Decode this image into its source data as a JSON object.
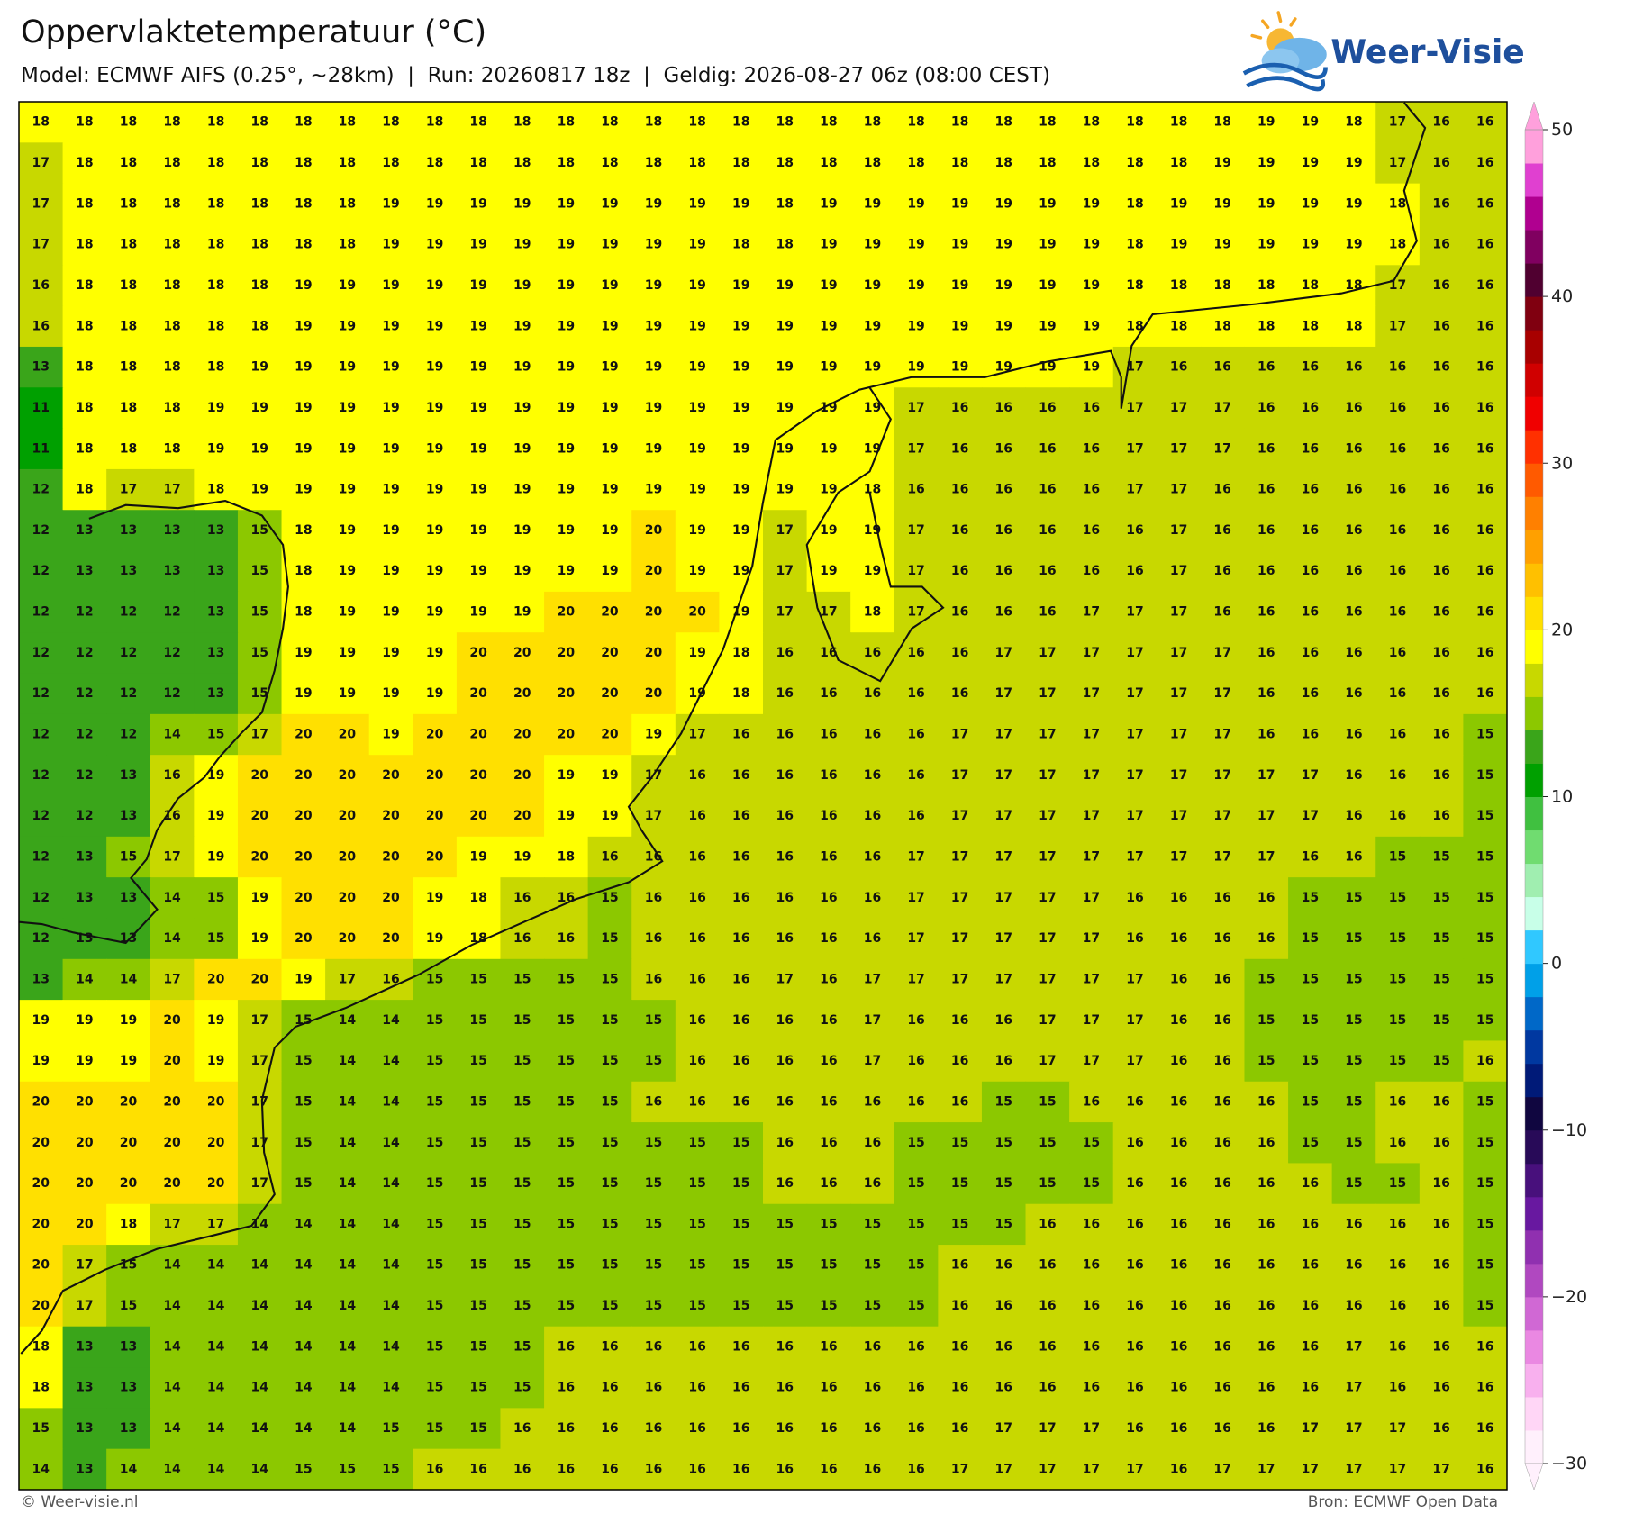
{
  "header": {
    "title": "Oppervlaktetemperatuur (°C)",
    "subtitle": "Model: ECMWF AIFS (0.25°, ~28km)  |  Run: 20260817 18z  |  Geldig: 2026-08-27 06z (08:00 CEST)"
  },
  "logo": "Weer-Visie",
  "map": {
    "values": [
      [
        18,
        18,
        18,
        18,
        18,
        18,
        18,
        18,
        18,
        18,
        18,
        18,
        18,
        18,
        18,
        18,
        18,
        18,
        18,
        18,
        18,
        18,
        18,
        18,
        18,
        18,
        18,
        18,
        19,
        19,
        18,
        17,
        16,
        16
      ],
      [
        17,
        18,
        18,
        18,
        18,
        18,
        18,
        18,
        18,
        18,
        18,
        18,
        18,
        18,
        18,
        18,
        18,
        18,
        18,
        18,
        18,
        18,
        18,
        18,
        18,
        18,
        18,
        19,
        19,
        19,
        19,
        17,
        16,
        16
      ],
      [
        17,
        18,
        18,
        18,
        18,
        18,
        18,
        18,
        19,
        19,
        19,
        19,
        19,
        19,
        19,
        19,
        19,
        18,
        19,
        19,
        19,
        19,
        19,
        19,
        19,
        18,
        19,
        19,
        19,
        19,
        19,
        18,
        16,
        16
      ],
      [
        17,
        18,
        18,
        18,
        18,
        18,
        18,
        18,
        19,
        19,
        19,
        19,
        19,
        19,
        19,
        19,
        18,
        18,
        19,
        19,
        19,
        19,
        19,
        19,
        19,
        18,
        19,
        19,
        19,
        19,
        19,
        18,
        16,
        16
      ],
      [
        16,
        18,
        18,
        18,
        18,
        18,
        19,
        19,
        19,
        19,
        19,
        19,
        19,
        19,
        19,
        19,
        19,
        19,
        19,
        19,
        19,
        19,
        19,
        19,
        19,
        18,
        18,
        18,
        18,
        18,
        18,
        17,
        16,
        16
      ],
      [
        16,
        18,
        18,
        18,
        18,
        18,
        19,
        19,
        19,
        19,
        19,
        19,
        19,
        19,
        19,
        19,
        19,
        19,
        19,
        19,
        19,
        19,
        19,
        19,
        19,
        18,
        18,
        18,
        18,
        18,
        18,
        17,
        16,
        16
      ],
      [
        13,
        18,
        18,
        18,
        18,
        19,
        19,
        19,
        19,
        19,
        19,
        19,
        19,
        19,
        19,
        19,
        19,
        19,
        19,
        19,
        19,
        19,
        19,
        19,
        19,
        17,
        16,
        16,
        16,
        16,
        16,
        16,
        16,
        16
      ],
      [
        11,
        18,
        18,
        18,
        19,
        19,
        19,
        19,
        19,
        19,
        19,
        19,
        19,
        19,
        19,
        19,
        19,
        19,
        19,
        19,
        17,
        16,
        16,
        16,
        16,
        17,
        17,
        17,
        16,
        16,
        16,
        16,
        16,
        16
      ],
      [
        11,
        18,
        18,
        18,
        19,
        19,
        19,
        19,
        19,
        19,
        19,
        19,
        19,
        19,
        19,
        19,
        19,
        19,
        19,
        19,
        17,
        16,
        16,
        16,
        16,
        17,
        17,
        17,
        16,
        16,
        16,
        16,
        16,
        16
      ],
      [
        12,
        18,
        17,
        17,
        18,
        19,
        19,
        19,
        19,
        19,
        19,
        19,
        19,
        19,
        19,
        19,
        19,
        19,
        19,
        18,
        16,
        16,
        16,
        16,
        16,
        17,
        17,
        16,
        16,
        16,
        16,
        16,
        16,
        16
      ],
      [
        12,
        13,
        13,
        13,
        13,
        15,
        18,
        19,
        19,
        19,
        19,
        19,
        19,
        19,
        20,
        19,
        19,
        17,
        19,
        19,
        17,
        16,
        16,
        16,
        16,
        16,
        17,
        16,
        16,
        16,
        16,
        16,
        16,
        16
      ],
      [
        12,
        13,
        13,
        13,
        13,
        15,
        18,
        19,
        19,
        19,
        19,
        19,
        19,
        19,
        20,
        19,
        19,
        17,
        19,
        19,
        17,
        16,
        16,
        16,
        16,
        16,
        17,
        16,
        16,
        16,
        16,
        16,
        16,
        16
      ],
      [
        12,
        12,
        12,
        12,
        13,
        15,
        18,
        19,
        19,
        19,
        19,
        19,
        20,
        20,
        20,
        20,
        19,
        17,
        17,
        18,
        17,
        16,
        16,
        16,
        17,
        17,
        17,
        16,
        16,
        16,
        16,
        16,
        16,
        16
      ],
      [
        12,
        12,
        12,
        12,
        13,
        15,
        19,
        19,
        19,
        19,
        20,
        20,
        20,
        20,
        20,
        19,
        18,
        16,
        16,
        16,
        16,
        16,
        17,
        17,
        17,
        17,
        17,
        17,
        16,
        16,
        16,
        16,
        16,
        16
      ],
      [
        12,
        12,
        12,
        12,
        13,
        15,
        19,
        19,
        19,
        19,
        20,
        20,
        20,
        20,
        20,
        19,
        18,
        16,
        16,
        16,
        16,
        16,
        17,
        17,
        17,
        17,
        17,
        17,
        16,
        16,
        16,
        16,
        16,
        16
      ],
      [
        12,
        12,
        12,
        14,
        15,
        17,
        20,
        20,
        19,
        20,
        20,
        20,
        20,
        20,
        19,
        17,
        16,
        16,
        16,
        16,
        16,
        17,
        17,
        17,
        17,
        17,
        17,
        17,
        16,
        16,
        16,
        16,
        16,
        15
      ],
      [
        12,
        12,
        13,
        16,
        19,
        20,
        20,
        20,
        20,
        20,
        20,
        20,
        19,
        19,
        17,
        16,
        16,
        16,
        16,
        16,
        16,
        17,
        17,
        17,
        17,
        17,
        17,
        17,
        17,
        17,
        16,
        16,
        16,
        15
      ],
      [
        12,
        12,
        13,
        16,
        19,
        20,
        20,
        20,
        20,
        20,
        20,
        20,
        19,
        19,
        17,
        16,
        16,
        16,
        16,
        16,
        16,
        17,
        17,
        17,
        17,
        17,
        17,
        17,
        17,
        17,
        16,
        16,
        16,
        15
      ],
      [
        12,
        13,
        15,
        17,
        19,
        20,
        20,
        20,
        20,
        20,
        19,
        19,
        18,
        16,
        16,
        16,
        16,
        16,
        16,
        16,
        17,
        17,
        17,
        17,
        17,
        17,
        17,
        17,
        17,
        16,
        16,
        15,
        15,
        15
      ],
      [
        12,
        13,
        13,
        14,
        15,
        19,
        20,
        20,
        20,
        19,
        18,
        16,
        16,
        15,
        16,
        16,
        16,
        16,
        16,
        16,
        17,
        17,
        17,
        17,
        17,
        16,
        16,
        16,
        16,
        15,
        15,
        15,
        15,
        15
      ],
      [
        12,
        13,
        13,
        14,
        15,
        19,
        20,
        20,
        20,
        19,
        18,
        16,
        16,
        15,
        16,
        16,
        16,
        16,
        16,
        16,
        17,
        17,
        17,
        17,
        17,
        16,
        16,
        16,
        16,
        15,
        15,
        15,
        15,
        15
      ],
      [
        13,
        14,
        14,
        17,
        20,
        20,
        19,
        17,
        16,
        15,
        15,
        15,
        15,
        15,
        16,
        16,
        16,
        17,
        16,
        17,
        17,
        17,
        17,
        17,
        17,
        17,
        16,
        16,
        15,
        15,
        15,
        15,
        15,
        15
      ],
      [
        19,
        19,
        19,
        20,
        19,
        17,
        15,
        14,
        14,
        15,
        15,
        15,
        15,
        15,
        15,
        16,
        16,
        16,
        16,
        17,
        16,
        16,
        16,
        17,
        17,
        17,
        16,
        16,
        15,
        15,
        15,
        15,
        15,
        15
      ],
      [
        19,
        19,
        19,
        20,
        19,
        17,
        15,
        14,
        14,
        15,
        15,
        15,
        15,
        15,
        15,
        16,
        16,
        16,
        16,
        17,
        16,
        16,
        16,
        17,
        17,
        17,
        16,
        16,
        15,
        15,
        15,
        15,
        15,
        16
      ],
      [
        20,
        20,
        20,
        20,
        20,
        17,
        15,
        14,
        14,
        15,
        15,
        15,
        15,
        15,
        16,
        16,
        16,
        16,
        16,
        16,
        16,
        16,
        15,
        15,
        16,
        16,
        16,
        16,
        16,
        15,
        15,
        16,
        16,
        15
      ],
      [
        20,
        20,
        20,
        20,
        20,
        17,
        15,
        14,
        14,
        15,
        15,
        15,
        15,
        15,
        15,
        15,
        15,
        16,
        16,
        16,
        15,
        15,
        15,
        15,
        15,
        16,
        16,
        16,
        16,
        15,
        15,
        16,
        16,
        15
      ],
      [
        20,
        20,
        20,
        20,
        20,
        17,
        15,
        14,
        14,
        15,
        15,
        15,
        15,
        15,
        15,
        15,
        15,
        16,
        16,
        16,
        15,
        15,
        15,
        15,
        15,
        16,
        16,
        16,
        16,
        16,
        15,
        15,
        16,
        15
      ],
      [
        20,
        20,
        18,
        17,
        17,
        14,
        14,
        14,
        14,
        15,
        15,
        15,
        15,
        15,
        15,
        15,
        15,
        15,
        15,
        15,
        15,
        15,
        15,
        16,
        16,
        16,
        16,
        16,
        16,
        16,
        16,
        16,
        16,
        15
      ],
      [
        20,
        17,
        15,
        14,
        14,
        14,
        14,
        14,
        14,
        15,
        15,
        15,
        15,
        15,
        15,
        15,
        15,
        15,
        15,
        15,
        15,
        16,
        16,
        16,
        16,
        16,
        16,
        16,
        16,
        16,
        16,
        16,
        16,
        15
      ],
      [
        20,
        17,
        15,
        14,
        14,
        14,
        14,
        14,
        14,
        15,
        15,
        15,
        15,
        15,
        15,
        15,
        15,
        15,
        15,
        15,
        15,
        16,
        16,
        16,
        16,
        16,
        16,
        16,
        16,
        16,
        16,
        16,
        16,
        15
      ],
      [
        18,
        13,
        13,
        14,
        14,
        14,
        14,
        14,
        14,
        15,
        15,
        15,
        16,
        16,
        16,
        16,
        16,
        16,
        16,
        16,
        16,
        16,
        16,
        16,
        16,
        16,
        16,
        16,
        16,
        16,
        17,
        16,
        16,
        16
      ],
      [
        18,
        13,
        13,
        14,
        14,
        14,
        14,
        14,
        14,
        15,
        15,
        15,
        16,
        16,
        16,
        16,
        16,
        16,
        16,
        16,
        16,
        16,
        16,
        16,
        16,
        16,
        16,
        16,
        16,
        16,
        17,
        16,
        16,
        16
      ],
      [
        15,
        13,
        13,
        14,
        14,
        14,
        14,
        14,
        15,
        15,
        15,
        16,
        16,
        16,
        16,
        16,
        16,
        16,
        16,
        16,
        16,
        16,
        17,
        17,
        17,
        16,
        16,
        16,
        16,
        17,
        17,
        17,
        16,
        16
      ],
      [
        14,
        13,
        14,
        14,
        14,
        14,
        15,
        15,
        15,
        16,
        16,
        16,
        16,
        16,
        16,
        16,
        16,
        16,
        16,
        16,
        16,
        17,
        17,
        17,
        17,
        17,
        16,
        17,
        17,
        17,
        17,
        17,
        17,
        16
      ]
    ]
  },
  "colorbar": {
    "lim": [
      -30,
      50
    ],
    "ticks": [
      50,
      40,
      30,
      20,
      10,
      0,
      {
        "value": -10,
        "label": "−10"
      },
      {
        "value": -20,
        "label": "−20"
      },
      {
        "value": -30,
        "label": "−30"
      }
    ],
    "colors": [
      "#fff0fc",
      "#ffd6f6",
      "#f8b0ee",
      "#ea88e2",
      "#d068d4",
      "#b048c0",
      "#9030b0",
      "#6818a0",
      "#48107c",
      "#280a58",
      "#100640",
      "#001a78",
      "#0038a0",
      "#0068c8",
      "#00a0e8",
      "#30c8ff",
      "#c8ffe8",
      "#a0eeb0",
      "#70dc70",
      "#40c040",
      "#00a000",
      "#3aa51a",
      "#8cc800",
      "#c8d800",
      "#ffff00",
      "#ffe000",
      "#ffc000",
      "#ffa000",
      "#ff8000",
      "#ff5a00",
      "#ff3000",
      "#f00000",
      "#d00000",
      "#a80000",
      "#800010",
      "#500030",
      "#800060",
      "#b00090",
      "#e040d0",
      "#ffa0dc"
    ]
  },
  "footer": {
    "credit": "© Weer-visie.nl",
    "source": "Bron: ECMWF Open Data"
  }
}
